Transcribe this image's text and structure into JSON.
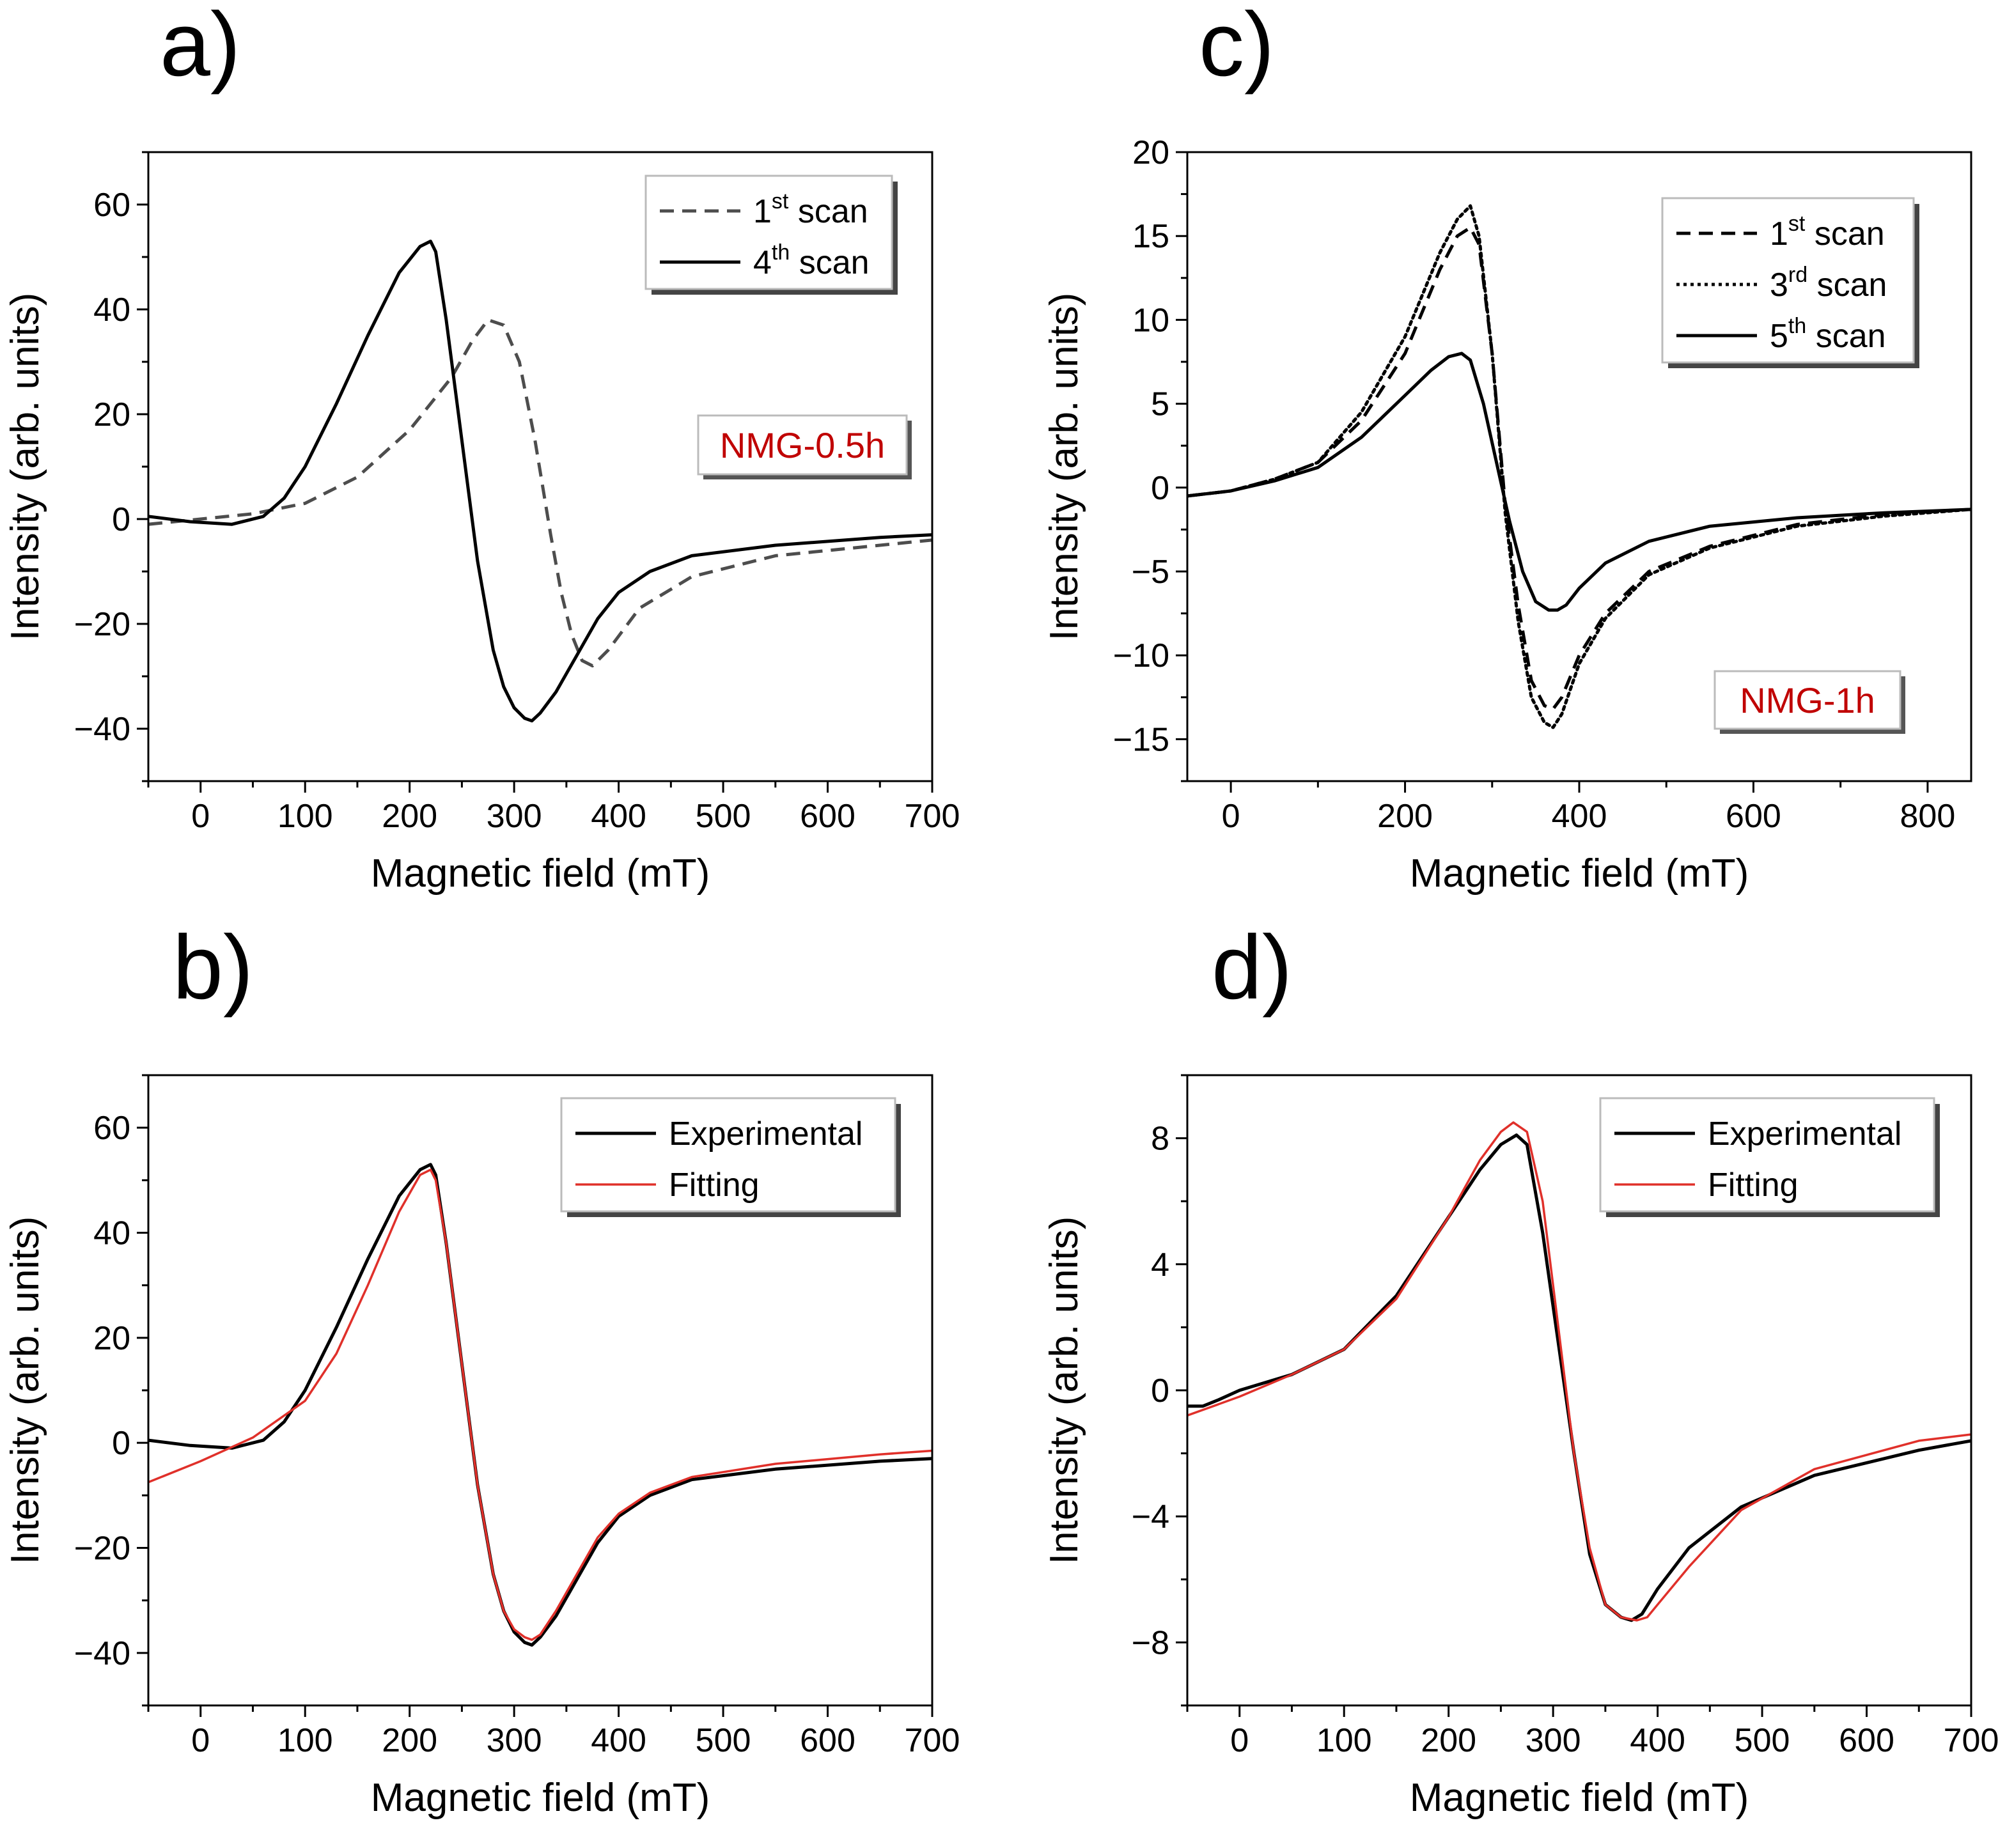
{
  "chart_data": [
    {
      "panel": "a)",
      "type": "line",
      "xlabel": "Magnetic field (mT)",
      "ylabel": "Intensity (arb. units)",
      "xlim": [
        -50,
        700
      ],
      "ylim": [
        -50,
        70
      ],
      "xticks": [
        0,
        100,
        200,
        300,
        400,
        500,
        600,
        700
      ],
      "xminor": 50,
      "yticks": [
        -40,
        -20,
        0,
        20,
        40,
        60
      ],
      "yminor": 10,
      "legend_position": "top-right",
      "sample_label": "NMG-0.5h",
      "series": [
        {
          "name": "1st scan",
          "legend_main": "1",
          "legend_sup": "st",
          "legend_tail": " scan",
          "color": "#4d4d4d",
          "dash": "dashed",
          "x": [
            -50,
            0,
            50,
            100,
            150,
            200,
            240,
            260,
            275,
            290,
            305,
            320,
            335,
            345,
            355,
            365,
            375,
            390,
            420,
            470,
            550,
            650,
            700
          ],
          "y": [
            -1,
            0,
            1,
            3,
            8,
            17,
            27,
            34,
            38,
            37,
            30,
            15,
            -3,
            -14,
            -22,
            -27,
            -28,
            -25,
            -17,
            -11,
            -7,
            -5,
            -4
          ]
        },
        {
          "name": "4th scan",
          "legend_main": "4",
          "legend_sup": "th",
          "legend_tail": " scan",
          "color": "#000000",
          "dash": "solid",
          "x": [
            -50,
            -10,
            30,
            60,
            80,
            100,
            130,
            160,
            190,
            210,
            220,
            225,
            235,
            250,
            265,
            280,
            290,
            300,
            310,
            317,
            325,
            340,
            360,
            380,
            400,
            430,
            470,
            550,
            650,
            700
          ],
          "y": [
            0.5,
            -0.5,
            -1,
            0.5,
            4,
            10,
            22,
            35,
            47,
            52,
            53,
            51,
            38,
            15,
            -8,
            -25,
            -32,
            -36,
            -38,
            -38.5,
            -37,
            -33,
            -26,
            -19,
            -14,
            -10,
            -7,
            -5,
            -3.5,
            -3
          ]
        }
      ]
    },
    {
      "panel": "b)",
      "type": "line",
      "xlabel": "Magnetic field (mT)",
      "ylabel": "Intensity (arb. units)",
      "xlim": [
        -50,
        700
      ],
      "ylim": [
        -50,
        70
      ],
      "xticks": [
        0,
        100,
        200,
        300,
        400,
        500,
        600,
        700
      ],
      "xminor": 50,
      "yticks": [
        -40,
        -20,
        0,
        20,
        40,
        60
      ],
      "yminor": 10,
      "legend_position": "top-right",
      "series": [
        {
          "name": "Experimental",
          "legend_main": "Experimental",
          "legend_sup": "",
          "legend_tail": "",
          "color": "#000000",
          "dash": "solid",
          "x": [
            -50,
            -10,
            30,
            60,
            80,
            100,
            130,
            160,
            190,
            210,
            220,
            225,
            235,
            250,
            265,
            280,
            290,
            300,
            310,
            317,
            325,
            340,
            360,
            380,
            400,
            430,
            470,
            550,
            650,
            700
          ],
          "y": [
            0.5,
            -0.5,
            -1,
            0.5,
            4,
            10,
            22,
            35,
            47,
            52,
            53,
            51,
            38,
            15,
            -8,
            -25,
            -32,
            -36,
            -38,
            -38.5,
            -37,
            -33,
            -26,
            -19,
            -14,
            -10,
            -7,
            -5,
            -3.5,
            -3
          ]
        },
        {
          "name": "Fitting",
          "legend_main": "Fitting",
          "legend_sup": "",
          "legend_tail": "",
          "color": "#e0302a",
          "dash": "solid",
          "x": [
            -50,
            0,
            50,
            100,
            130,
            160,
            190,
            210,
            220,
            225,
            235,
            250,
            265,
            280,
            290,
            300,
            310,
            317,
            325,
            340,
            360,
            380,
            400,
            430,
            470,
            550,
            650,
            700
          ],
          "y": [
            -7.5,
            -3.5,
            1,
            8,
            17,
            30,
            44,
            51,
            52,
            50,
            38,
            15,
            -8,
            -25,
            -32,
            -35.5,
            -37,
            -37.5,
            -36.5,
            -32,
            -25,
            -18,
            -13.5,
            -9.5,
            -6.5,
            -4,
            -2.2,
            -1.5
          ]
        }
      ]
    },
    {
      "panel": "c)",
      "type": "line",
      "xlabel": "Magnetic field (mT)",
      "ylabel": "Intensity (arb. units)",
      "xlim": [
        -50,
        850
      ],
      "ylim": [
        -17.5,
        20
      ],
      "xticks": [
        0,
        200,
        400,
        600,
        800
      ],
      "xminor": 100,
      "yticks": [
        -15,
        -10,
        -5,
        0,
        5,
        10,
        15,
        20
      ],
      "yminor": 2.5,
      "legend_position": "top-right",
      "sample_label": "NMG-1h",
      "series": [
        {
          "name": "1st scan",
          "legend_main": "1",
          "legend_sup": "st",
          "legend_tail": " scan",
          "color": "#000000",
          "dash": "dashed",
          "x": [
            -50,
            0,
            50,
            100,
            150,
            200,
            240,
            260,
            275,
            285,
            300,
            315,
            330,
            345,
            360,
            370,
            380,
            400,
            430,
            480,
            550,
            650,
            750,
            850
          ],
          "y": [
            -0.5,
            -0.2,
            0.5,
            1.5,
            4,
            8,
            13,
            15,
            15.5,
            14.5,
            8,
            -1,
            -7,
            -11.5,
            -13,
            -13.2,
            -12.5,
            -10,
            -7.5,
            -5,
            -3.5,
            -2.2,
            -1.6,
            -1.3
          ]
        },
        {
          "name": "3rd scan",
          "legend_main": "3",
          "legend_sup": "rd",
          "legend_tail": " scan",
          "color": "#000000",
          "dash": "dotted",
          "x": [
            -50,
            0,
            50,
            100,
            150,
            200,
            240,
            260,
            275,
            285,
            300,
            315,
            330,
            345,
            360,
            370,
            380,
            400,
            430,
            480,
            550,
            650,
            750,
            850
          ],
          "y": [
            -0.5,
            -0.2,
            0.5,
            1.5,
            4.5,
            9,
            14,
            16,
            16.8,
            15,
            8,
            -1.5,
            -8,
            -12.5,
            -14,
            -14.3,
            -13.5,
            -10.5,
            -7.8,
            -5.2,
            -3.6,
            -2.3,
            -1.7,
            -1.3
          ]
        },
        {
          "name": "5th scan",
          "legend_main": "5",
          "legend_sup": "th",
          "legend_tail": " scan",
          "color": "#000000",
          "dash": "solid",
          "x": [
            -50,
            0,
            50,
            100,
            150,
            200,
            230,
            250,
            265,
            275,
            290,
            305,
            320,
            335,
            350,
            365,
            375,
            385,
            400,
            430,
            480,
            550,
            650,
            750,
            850
          ],
          "y": [
            -0.5,
            -0.2,
            0.4,
            1.2,
            3,
            5.5,
            7,
            7.8,
            8,
            7.6,
            5,
            1.5,
            -2,
            -5,
            -6.8,
            -7.3,
            -7.3,
            -7,
            -6,
            -4.5,
            -3.2,
            -2.3,
            -1.8,
            -1.5,
            -1.3
          ]
        }
      ]
    },
    {
      "panel": "d)",
      "type": "line",
      "xlabel": "Magnetic field (mT)",
      "ylabel": "Intensity (arb. units)",
      "xlim": [
        -50,
        700
      ],
      "ylim": [
        -10,
        10
      ],
      "xticks": [
        0,
        100,
        200,
        300,
        400,
        500,
        600,
        700
      ],
      "xminor": 50,
      "yticks": [
        -8,
        -4,
        0,
        4,
        8
      ],
      "yminor": 2,
      "legend_position": "top-right",
      "series": [
        {
          "name": "Experimental",
          "legend_main": "Experimental",
          "legend_sup": "",
          "legend_tail": "",
          "color": "#000000",
          "dash": "solid",
          "x": [
            -50,
            -35,
            -20,
            0,
            50,
            100,
            150,
            200,
            230,
            250,
            265,
            275,
            290,
            305,
            320,
            335,
            350,
            365,
            375,
            385,
            400,
            430,
            480,
            550,
            650,
            700
          ],
          "y": [
            -0.5,
            -0.5,
            -0.3,
            0,
            0.5,
            1.3,
            3,
            5.5,
            7,
            7.8,
            8.1,
            7.8,
            5,
            1.5,
            -2,
            -5.2,
            -6.8,
            -7.2,
            -7.3,
            -7.1,
            -6.3,
            -5,
            -3.7,
            -2.7,
            -1.9,
            -1.6
          ]
        },
        {
          "name": "Fitting",
          "legend_main": "Fitting",
          "legend_sup": "",
          "legend_tail": "",
          "color": "#e0302a",
          "dash": "solid",
          "x": [
            -50,
            0,
            50,
            100,
            150,
            200,
            230,
            250,
            262,
            275,
            290,
            305,
            320,
            335,
            350,
            365,
            380,
            390,
            400,
            430,
            480,
            550,
            650,
            700
          ],
          "y": [
            -0.8,
            -0.2,
            0.5,
            1.3,
            2.9,
            5.5,
            7.3,
            8.2,
            8.5,
            8.2,
            6,
            2,
            -2,
            -5,
            -6.8,
            -7.2,
            -7.3,
            -7.2,
            -6.8,
            -5.6,
            -3.8,
            -2.5,
            -1.6,
            -1.4
          ]
        }
      ]
    }
  ]
}
